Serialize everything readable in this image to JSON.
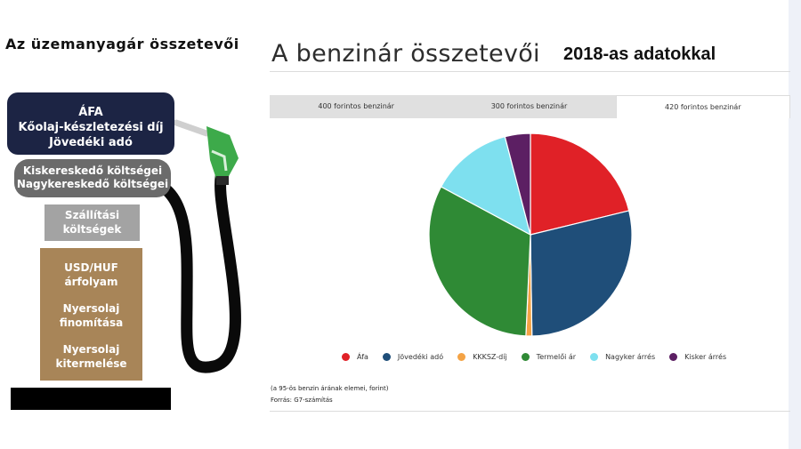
{
  "left_panel": {
    "title": "Az üzemanyagár összetevői",
    "blocks": {
      "tax": [
        "ÁFA",
        "Kőolaj-készletezési díj",
        "Jövedéki adó"
      ],
      "retail": [
        "Kiskereskedő költségei",
        "Nagykereskedő költségei"
      ],
      "transport": [
        "Szállítási",
        "költségek"
      ],
      "crude": [
        [
          "USD/HUF",
          "árfolyam"
        ],
        [
          "Nyersolaj",
          "finomítása"
        ],
        [
          "Nyersolaj",
          "kitermelése"
        ]
      ]
    }
  },
  "header": {
    "title": "A benzinár összetevői",
    "subtitle": "2018-as adatokkal"
  },
  "tabs": [
    {
      "label": "400 forintos benzinár",
      "active": false
    },
    {
      "label": "300 forintos benzinár",
      "active": false
    },
    {
      "label": "420 forintos benzinár",
      "active": true
    }
  ],
  "chart_data": {
    "type": "pie",
    "start_angle_deg": 0,
    "direction": "clockwise",
    "slices": [
      {
        "label": "Áfa",
        "value": 89,
        "color": "#e02127"
      },
      {
        "label": "Jövedéki adó",
        "value": 120,
        "color": "#1f4e79"
      },
      {
        "label": "KKKSZ-díj",
        "value": 4,
        "color": "#f4a345"
      },
      {
        "label": "Termelői ár",
        "value": 135,
        "color": "#2f8a35"
      },
      {
        "label": "Nagyker árrés",
        "value": 55,
        "color": "#7ee0ef"
      },
      {
        "label": "Kisker árrés",
        "value": 17,
        "color": "#5c1f63"
      }
    ]
  },
  "notes": {
    "note": "(a 95-ös benzin árának elemei, forint)",
    "source": "Forrás: G7-számítás"
  },
  "colors": {
    "navy_block": "#1c2444",
    "gray_block": "#6b6b6b",
    "light_gray_block": "#a3a3a3",
    "brown_block": "#a88558",
    "nozzle_green": "#3daa4a"
  }
}
